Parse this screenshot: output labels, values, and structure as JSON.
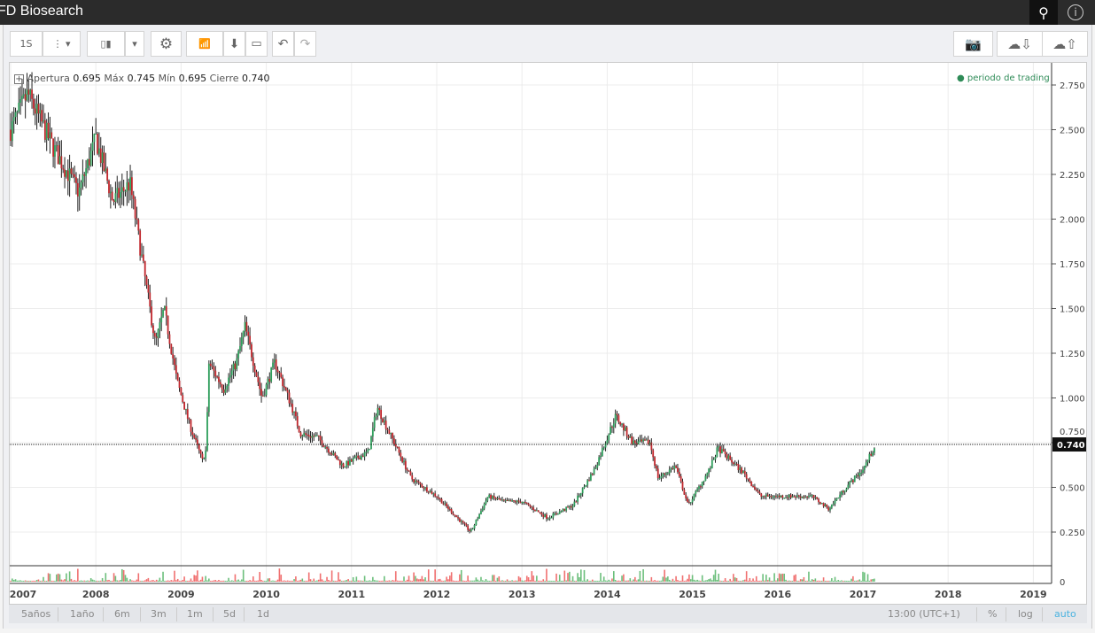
{
  "title": "FD Biosearch",
  "toolbar": {
    "interval": "1S"
  },
  "legend": {
    "open_label": "Apertura",
    "open": "0.695",
    "high_label": "Máx",
    "high": "0.745",
    "low_label": "Mín",
    "low": "0.695",
    "close_label": "Cierre",
    "close": "0.740"
  },
  "trading_period": "periodo de trading",
  "ranges": [
    "5años",
    "1año",
    "6m",
    "3m",
    "1m",
    "5d",
    "1d"
  ],
  "timezone": "13:00 (UTC+1)",
  "scale_options": {
    "percent": "%",
    "log": "log",
    "auto": "auto"
  },
  "colors": {
    "up": "#2e9e5b",
    "down": "#c0262c",
    "auto": "#4ab3e0"
  },
  "chart_data": {
    "type": "candlestick",
    "y_ticks": [
      "2.750",
      "2.500",
      "2.250",
      "2.000",
      "1.750",
      "1.500",
      "1.250",
      "1.000",
      "0.750",
      "0.500",
      "0.250"
    ],
    "y_tick_values": [
      2.75,
      2.5,
      2.25,
      2.0,
      1.75,
      1.5,
      1.25,
      1.0,
      0.75,
      0.5,
      0.25
    ],
    "x_ticks": [
      "2007",
      "2008",
      "2009",
      "2010",
      "2011",
      "2012",
      "2013",
      "2014",
      "2015",
      "2016",
      "2017",
      "2018",
      "2019"
    ],
    "last_price": "0.740",
    "volume_zero": "0",
    "price_path": [
      [
        2007.0,
        2.5
      ],
      [
        2007.2,
        2.7
      ],
      [
        2007.5,
        2.4
      ],
      [
        2007.8,
        2.15
      ],
      [
        2008.0,
        2.45
      ],
      [
        2008.2,
        2.1
      ],
      [
        2008.4,
        2.2
      ],
      [
        2008.5,
        1.9
      ],
      [
        2008.7,
        1.3
      ],
      [
        2008.8,
        1.5
      ],
      [
        2008.95,
        1.1
      ],
      [
        2009.1,
        0.85
      ],
      [
        2009.25,
        0.65
      ],
      [
        2009.3,
        0.72
      ],
      [
        2009.32,
        1.2
      ],
      [
        2009.5,
        1.05
      ],
      [
        2009.65,
        1.2
      ],
      [
        2009.75,
        1.4
      ],
      [
        2009.95,
        1.0
      ],
      [
        2010.1,
        1.2
      ],
      [
        2010.3,
        0.95
      ],
      [
        2010.4,
        0.8
      ],
      [
        2010.6,
        0.78
      ],
      [
        2010.9,
        0.62
      ],
      [
        2011.2,
        0.7
      ],
      [
        2011.3,
        0.95
      ],
      [
        2011.5,
        0.75
      ],
      [
        2011.7,
        0.55
      ],
      [
        2012.0,
        0.45
      ],
      [
        2012.4,
        0.25
      ],
      [
        2012.6,
        0.45
      ],
      [
        2012.8,
        0.42
      ],
      [
        2013.0,
        0.42
      ],
      [
        2013.3,
        0.33
      ],
      [
        2013.6,
        0.4
      ],
      [
        2013.85,
        0.6
      ],
      [
        2014.1,
        0.9
      ],
      [
        2014.3,
        0.75
      ],
      [
        2014.5,
        0.75
      ],
      [
        2014.6,
        0.55
      ],
      [
        2014.8,
        0.62
      ],
      [
        2014.95,
        0.4
      ],
      [
        2015.2,
        0.6
      ],
      [
        2015.3,
        0.72
      ],
      [
        2015.6,
        0.58
      ],
      [
        2015.8,
        0.45
      ],
      [
        2016.0,
        0.45
      ],
      [
        2016.4,
        0.45
      ],
      [
        2016.6,
        0.38
      ],
      [
        2016.8,
        0.5
      ],
      [
        2017.0,
        0.6
      ],
      [
        2017.15,
        0.74
      ]
    ]
  }
}
